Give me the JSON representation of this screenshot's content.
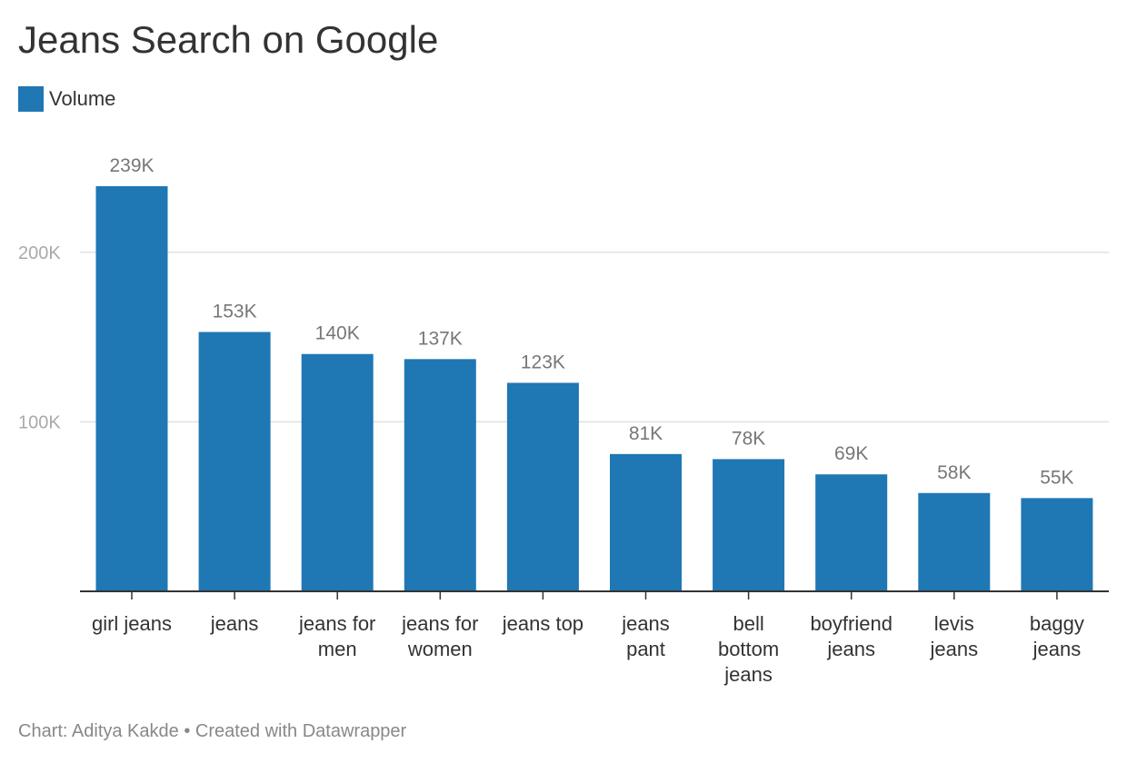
{
  "title": "Jeans Search on Google",
  "legend": {
    "label": "Volume",
    "color": "#1f77b4"
  },
  "footer": "Chart: Aditya Kakde • Created with Datawrapper",
  "chart_data": {
    "type": "bar",
    "title": "Jeans Search on Google",
    "categories": [
      "girl jeans",
      "jeans",
      "jeans for men",
      "jeans for women",
      "jeans top",
      "jeans pant",
      "bell bottom jeans",
      "boyfriend jeans",
      "levis jeans",
      "baggy jeans"
    ],
    "category_lines": [
      [
        "girl jeans"
      ],
      [
        "jeans"
      ],
      [
        "jeans for",
        "men"
      ],
      [
        "jeans for",
        "women"
      ],
      [
        "jeans top"
      ],
      [
        "jeans",
        "pant"
      ],
      [
        "bell",
        "bottom",
        "jeans"
      ],
      [
        "boyfriend",
        "jeans"
      ],
      [
        "levis",
        "jeans"
      ],
      [
        "baggy",
        "jeans"
      ]
    ],
    "series": [
      {
        "name": "Volume",
        "values": [
          239000,
          153000,
          140000,
          137000,
          123000,
          81000,
          78000,
          69000,
          58000,
          55000
        ],
        "color": "#1f77b4"
      }
    ],
    "value_labels": [
      "239K",
      "153K",
      "140K",
      "137K",
      "123K",
      "81K",
      "78K",
      "69K",
      "58K",
      "55K"
    ],
    "yticks": [
      100000,
      200000
    ],
    "ytick_labels": [
      "100K",
      "200K"
    ],
    "ylim": [
      0,
      239000
    ],
    "xlabel": "",
    "ylabel": "",
    "grid": true,
    "legend_position": "top-left"
  }
}
